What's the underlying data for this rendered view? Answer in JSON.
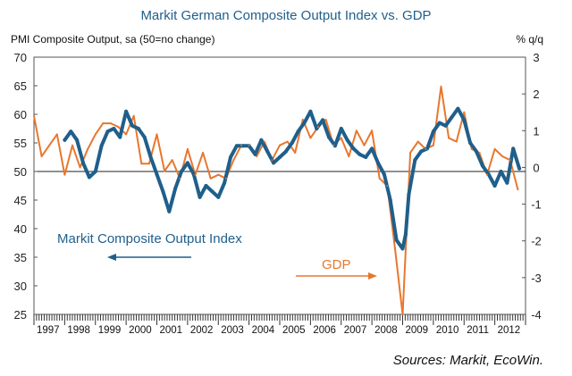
{
  "chart_data": {
    "type": "line",
    "title": "Markit German Composite Output Index vs. GDP",
    "ylabel_left": "PMI Composite Output, sa (50=no change)",
    "ylabel_right": "% q/q",
    "ylim_left": [
      25,
      70
    ],
    "yticks_left": [
      25,
      30,
      35,
      40,
      45,
      50,
      55,
      60,
      65,
      70
    ],
    "ylim_right": [
      -4,
      3
    ],
    "yticks_right": [
      -4,
      -3,
      -2,
      -1,
      0,
      1,
      2,
      3
    ],
    "xlim": [
      1997.0,
      2013.0
    ],
    "x_tick_labels": [
      "1997",
      "1998",
      "1999",
      "2000",
      "2001",
      "2002",
      "2003",
      "2004",
      "2005",
      "2006",
      "2007",
      "2008",
      "2009",
      "2010",
      "2011",
      "2012"
    ],
    "reference_line": {
      "axis": "left",
      "value": 50
    },
    "source": "Sources: Markit, EcoWin.",
    "colors": {
      "pmi": "#1f5f8b",
      "gdp": "#e8772e"
    },
    "series": [
      {
        "name": "Markit Composite Output Index",
        "axis": "left",
        "color": "#1f5f8b",
        "x": [
          1998.0,
          1998.2,
          1998.4,
          1998.6,
          1998.8,
          1999.0,
          1999.2,
          1999.4,
          1999.6,
          1999.8,
          2000.0,
          2000.2,
          2000.4,
          2000.6,
          2000.8,
          2001.0,
          2001.2,
          2001.4,
          2001.6,
          2001.8,
          2002.0,
          2002.2,
          2002.4,
          2002.6,
          2002.8,
          2003.0,
          2003.2,
          2003.4,
          2003.6,
          2003.8,
          2004.0,
          2004.2,
          2004.4,
          2004.6,
          2004.8,
          2005.0,
          2005.2,
          2005.4,
          2005.6,
          2005.8,
          2006.0,
          2006.2,
          2006.4,
          2006.6,
          2006.8,
          2007.0,
          2007.2,
          2007.4,
          2007.6,
          2007.8,
          2008.0,
          2008.2,
          2008.4,
          2008.6,
          2008.8,
          2009.0,
          2009.1,
          2009.2,
          2009.4,
          2009.6,
          2009.8,
          2010.0,
          2010.2,
          2010.4,
          2010.6,
          2010.8,
          2011.0,
          2011.2,
          2011.4,
          2011.6,
          2011.8,
          2012.0,
          2012.2,
          2012.4,
          2012.6,
          2012.8
        ],
        "values": [
          55.5,
          57.0,
          55.5,
          51.5,
          49.0,
          50.0,
          54.5,
          57.0,
          57.5,
          56.0,
          60.5,
          58.0,
          57.5,
          56.0,
          52.5,
          49.5,
          46.5,
          43.0,
          47.0,
          50.0,
          51.5,
          49.5,
          45.5,
          47.5,
          46.5,
          45.5,
          48.0,
          52.5,
          54.5,
          54.5,
          54.5,
          53.0,
          55.5,
          53.5,
          51.5,
          52.5,
          53.5,
          55.0,
          57.0,
          58.5,
          60.5,
          57.5,
          59.0,
          56.0,
          54.5,
          57.5,
          55.5,
          54.0,
          53.0,
          52.5,
          54.0,
          51.5,
          49.5,
          45.0,
          38.0,
          36.5,
          39.0,
          46.0,
          52.0,
          53.5,
          54.0,
          57.0,
          58.5,
          58.0,
          59.5,
          61.0,
          59.0,
          55.0,
          53.5,
          51.0,
          49.5,
          47.5,
          50.0,
          48.0,
          54.0,
          50.5
        ]
      },
      {
        "name": "GDP",
        "axis": "right",
        "color": "#e8772e",
        "x": [
          1997.0,
          1997.25,
          1997.5,
          1997.75,
          1998.0,
          1998.25,
          1998.5,
          1998.75,
          1999.0,
          1999.25,
          1999.5,
          1999.75,
          2000.0,
          2000.25,
          2000.5,
          2000.75,
          2001.0,
          2001.25,
          2001.5,
          2001.75,
          2002.0,
          2002.25,
          2002.5,
          2002.75,
          2003.0,
          2003.25,
          2003.5,
          2003.75,
          2004.0,
          2004.25,
          2004.5,
          2004.75,
          2005.0,
          2005.25,
          2005.5,
          2005.75,
          2006.0,
          2006.25,
          2006.5,
          2006.75,
          2007.0,
          2007.25,
          2007.5,
          2007.75,
          2008.0,
          2008.25,
          2008.5,
          2008.75,
          2009.0,
          2009.25,
          2009.5,
          2009.75,
          2010.0,
          2010.25,
          2010.5,
          2010.75,
          2011.0,
          2011.25,
          2011.5,
          2011.75,
          2012.0,
          2012.25,
          2012.5,
          2012.75
        ],
        "values": [
          1.4,
          0.3,
          0.6,
          0.9,
          -0.2,
          0.6,
          0.0,
          0.5,
          0.9,
          1.2,
          1.2,
          1.1,
          0.9,
          1.4,
          0.1,
          0.1,
          0.9,
          -0.1,
          0.2,
          -0.3,
          0.5,
          -0.2,
          0.4,
          -0.3,
          -0.2,
          -0.3,
          0.2,
          0.6,
          0.6,
          0.3,
          0.7,
          0.2,
          0.6,
          0.7,
          0.4,
          1.3,
          0.8,
          1.1,
          1.3,
          0.6,
          0.8,
          0.3,
          1.0,
          0.6,
          1.0,
          -0.3,
          -0.5,
          -2.2,
          -4.0,
          0.4,
          0.7,
          0.5,
          0.6,
          2.2,
          0.8,
          0.7,
          1.5,
          0.5,
          0.4,
          -0.2,
          0.5,
          0.3,
          0.2,
          -0.6
        ]
      }
    ],
    "annotations": [
      {
        "text": "Markit Composite Output Index",
        "series": "Markit Composite Output Index",
        "arrow": "left"
      },
      {
        "text": "GDP",
        "series": "GDP",
        "arrow": "right"
      }
    ]
  }
}
